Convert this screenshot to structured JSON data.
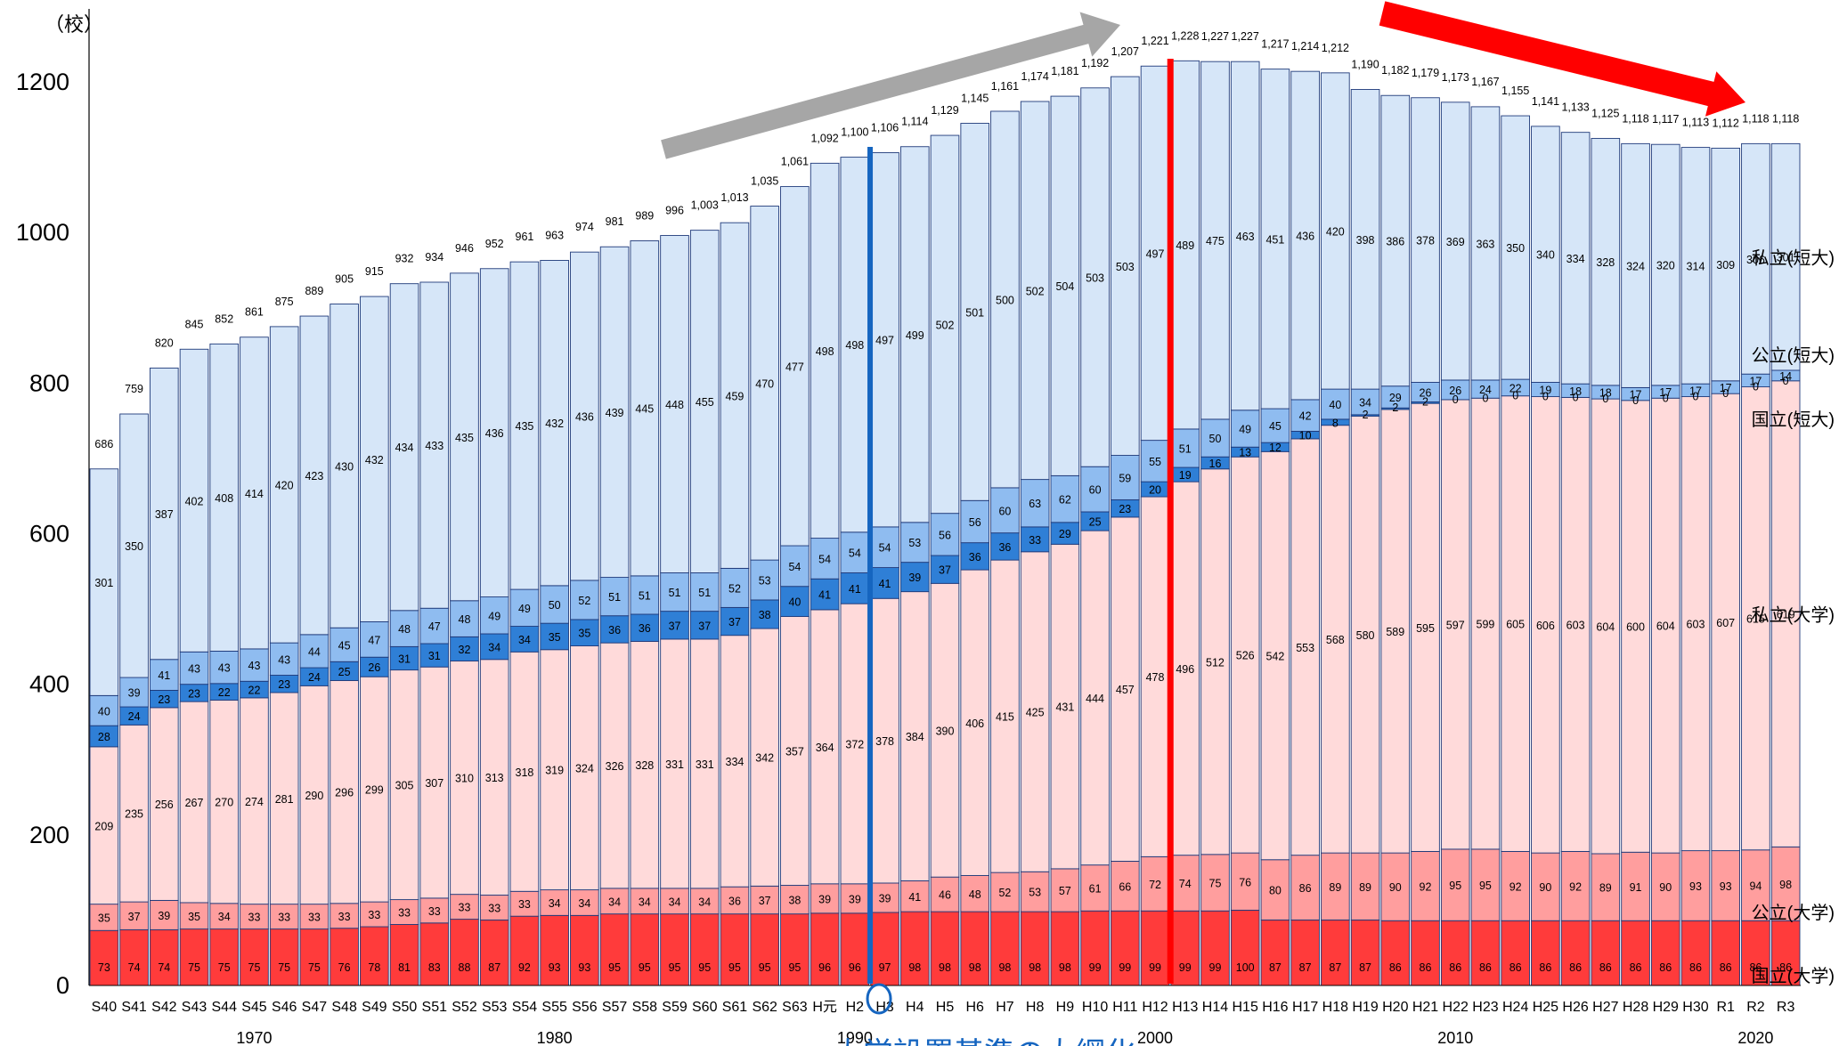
{
  "chart_data": {
    "type": "bar",
    "stacked": true,
    "ylabel": "（校）",
    "ylim": [
      0,
      1300
    ],
    "yticks": [
      0,
      200,
      400,
      600,
      800,
      1000,
      1200
    ],
    "grid": false,
    "categories": [
      "S40",
      "S41",
      "S42",
      "S43",
      "S44",
      "S45",
      "S46",
      "S47",
      "S48",
      "S49",
      "S50",
      "S51",
      "S52",
      "S53",
      "S54",
      "S55",
      "S56",
      "S57",
      "S58",
      "S59",
      "S60",
      "S61",
      "S62",
      "S63",
      "H元",
      "H2",
      "H3",
      "H4",
      "H5",
      "H6",
      "H7",
      "H8",
      "H9",
      "H10",
      "H11",
      "H12",
      "H13",
      "H14",
      "H15",
      "H16",
      "H17",
      "H18",
      "H19",
      "H20",
      "H21",
      "H22",
      "H23",
      "H24",
      "H25",
      "H26",
      "H27",
      "H28",
      "H29",
      "H30",
      "R1",
      "R2",
      "R3"
    ],
    "decade_labels": [
      {
        "label": "1970",
        "category": "S45"
      },
      {
        "label": "1980",
        "category": "S55"
      },
      {
        "label": "1990",
        "category": "H2"
      },
      {
        "label": "2000",
        "category": "H12"
      },
      {
        "label": "2010",
        "category": "H22"
      },
      {
        "label": "2020",
        "category": "R2"
      }
    ],
    "totals": [
      686,
      759,
      820,
      845,
      852,
      861,
      875,
      889,
      905,
      915,
      932,
      934,
      946,
      952,
      961,
      963,
      974,
      981,
      989,
      996,
      1003,
      1013,
      1035,
      1061,
      1092,
      1100,
      1106,
      1114,
      1129,
      1145,
      1161,
      1174,
      1181,
      1192,
      1207,
      1221,
      1228,
      1227,
      1227,
      1217,
      1214,
      1212,
      1190,
      1182,
      1179,
      1173,
      1167,
      1155,
      1141,
      1133,
      1125,
      1118,
      1117,
      1113,
      1112,
      1118,
      1118
    ],
    "series": [
      {
        "name": "国立(大学)",
        "color": "#ff3b3b",
        "values": [
          73,
          74,
          74,
          75,
          75,
          75,
          75,
          75,
          76,
          78,
          81,
          83,
          88,
          87,
          92,
          93,
          93,
          95,
          95,
          95,
          95,
          95,
          95,
          95,
          96,
          96,
          97,
          98,
          98,
          98,
          98,
          98,
          98,
          99,
          99,
          99,
          99,
          99,
          100,
          87,
          87,
          87,
          87,
          86,
          86,
          86,
          86,
          86,
          86,
          86,
          86,
          86,
          86,
          86,
          86,
          86,
          86
        ]
      },
      {
        "name": "公立(大学)",
        "color": "#ff9e9e",
        "values": [
          35,
          37,
          39,
          35,
          34,
          33,
          33,
          33,
          33,
          33,
          33,
          33,
          33,
          33,
          33,
          34,
          34,
          34,
          34,
          34,
          34,
          36,
          37,
          38,
          39,
          39,
          39,
          41,
          46,
          48,
          52,
          53,
          57,
          61,
          66,
          72,
          74,
          75,
          76,
          80,
          86,
          89,
          89,
          90,
          92,
          95,
          95,
          92,
          90,
          92,
          89,
          91,
          90,
          93,
          93,
          94,
          98
        ]
      },
      {
        "name": "私立(大学)",
        "color": "#ffdada",
        "values": [
          209,
          235,
          256,
          267,
          270,
          274,
          281,
          290,
          296,
          299,
          305,
          307,
          310,
          313,
          318,
          319,
          324,
          326,
          328,
          331,
          331,
          334,
          342,
          357,
          364,
          372,
          378,
          384,
          390,
          406,
          415,
          425,
          431,
          444,
          457,
          478,
          496,
          512,
          526,
          542,
          553,
          568,
          580,
          589,
          595,
          597,
          599,
          605,
          606,
          603,
          604,
          600,
          604,
          603,
          607,
          615,
          619
        ]
      },
      {
        "name": "国立(短大)",
        "color": "#2f7fd6",
        "values": [
          28,
          24,
          23,
          23,
          22,
          22,
          23,
          24,
          25,
          26,
          31,
          31,
          32,
          34,
          34,
          35,
          35,
          36,
          36,
          37,
          37,
          37,
          38,
          40,
          41,
          41,
          41,
          39,
          37,
          36,
          36,
          33,
          29,
          25,
          23,
          20,
          19,
          16,
          13,
          12,
          10,
          8,
          2,
          2,
          2,
          0,
          0,
          0,
          0,
          0,
          0,
          0,
          0,
          0,
          0,
          0,
          0
        ]
      },
      {
        "name": "公立(短大)",
        "color": "#8fbcf0",
        "values": [
          40,
          39,
          41,
          43,
          43,
          43,
          43,
          44,
          45,
          47,
          48,
          47,
          48,
          49,
          49,
          50,
          52,
          51,
          51,
          51,
          51,
          52,
          53,
          54,
          54,
          54,
          54,
          53,
          56,
          56,
          60,
          63,
          62,
          60,
          59,
          55,
          51,
          50,
          49,
          45,
          42,
          40,
          34,
          29,
          26,
          26,
          24,
          22,
          19,
          18,
          18,
          17,
          17,
          17,
          17,
          17,
          14
        ]
      },
      {
        "name": "私立(短大)",
        "color": "#d6e6f8",
        "values": [
          301,
          350,
          387,
          402,
          408,
          414,
          420,
          423,
          430,
          432,
          434,
          433,
          435,
          436,
          435,
          432,
          436,
          439,
          445,
          448,
          455,
          459,
          470,
          477,
          498,
          498,
          497,
          499,
          502,
          501,
          500,
          502,
          504,
          503,
          503,
          497,
          489,
          475,
          463,
          451,
          436,
          420,
          398,
          386,
          378,
          369,
          363,
          350,
          340,
          334,
          328,
          324,
          320,
          314,
          309,
          306,
          301
        ]
      }
    ],
    "legend_labels": [
      {
        "series": 5,
        "text": "私立(短大)"
      },
      {
        "series": 4,
        "text": "公立(短大)"
      },
      {
        "series": 3,
        "text": "国立(短大)"
      },
      {
        "series": 2,
        "text": "私立(大学)"
      },
      {
        "series": 1,
        "text": "公立(大学)"
      },
      {
        "series": 0,
        "text": "国立(大学)"
      }
    ],
    "annotations": [
      {
        "type": "vertical-line",
        "category": "H3",
        "color": "#1565c0"
      },
      {
        "type": "vertical-line",
        "category": "H13",
        "color": "#ff0000"
      },
      {
        "type": "arrow",
        "color": "#a6a6a6",
        "direction": "up-right",
        "from_category": "S59",
        "to_category": "H9"
      },
      {
        "type": "arrow",
        "color": "#ff0000",
        "direction": "down-right",
        "from_category": "H15",
        "to_category": "H30"
      },
      {
        "type": "partial-text",
        "text": "大学設置基準の大綱化",
        "color": "#1565c0"
      }
    ]
  }
}
